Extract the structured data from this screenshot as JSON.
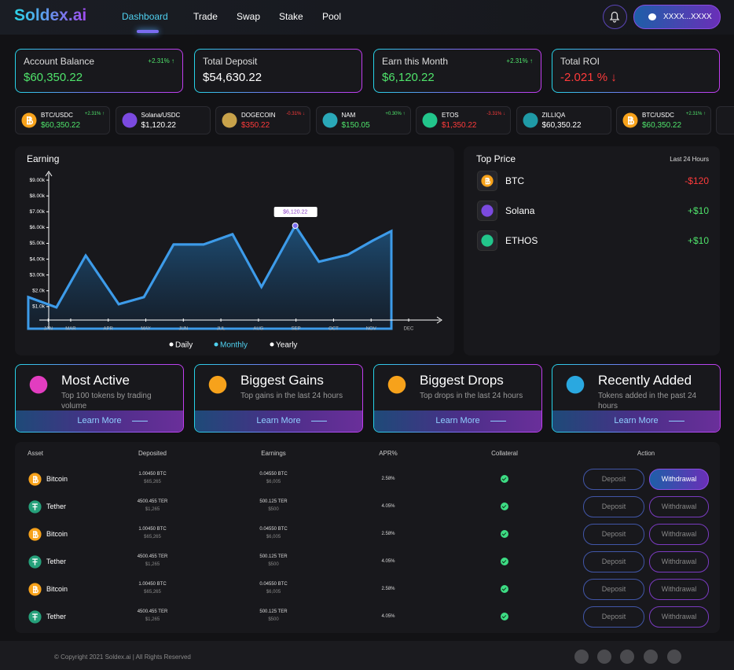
{
  "header": {
    "logo": "Soldex.ai",
    "nav": [
      "Dashboard",
      "Trade",
      "Swap",
      "Stake",
      "Pool"
    ],
    "wallet": "XXXX...XXXX"
  },
  "stats": [
    {
      "label": "Account Balance",
      "value": "$60,350.22",
      "change": "+2.31% ↑",
      "color": "#4fe36b"
    },
    {
      "label": "Total Deposit",
      "value": "$54,630.22",
      "color": "#ffffff"
    },
    {
      "label": "Earn this Month",
      "value": "$6,120.22",
      "change": "+2.31% ↑",
      "color": "#4fe36b"
    },
    {
      "label": "Total ROI",
      "value": "-2.021 % ↓",
      "color": "#ff3b3b"
    }
  ],
  "tickers": [
    {
      "pair": "BTC/USDC",
      "change": "+2.31% ↑",
      "price": "$60,350.22",
      "color": "#4fe36b"
    },
    {
      "pair": "Solana/USDC",
      "price": "$1,120.22",
      "color": "#ffffff"
    },
    {
      "pair": "DOGECOIN",
      "change": "-0.31% ↓",
      "price": "$350.22",
      "color": "#ff3b3b"
    },
    {
      "pair": "NAM",
      "change": "+0.30% ↑",
      "price": "$150.05",
      "color": "#4fe36b"
    },
    {
      "pair": "ETOS",
      "change": "-3.31% ↓",
      "price": "$1,350.22",
      "color": "#ff3b3b"
    },
    {
      "pair": "ZILLIQA",
      "price": "$60,350.22",
      "color": "#ffffff"
    },
    {
      "pair": "BTC/USDC",
      "change": "+2.31% ↑",
      "price": "$60,350.22",
      "color": "#4fe36b"
    }
  ],
  "chart_data": {
    "type": "line",
    "title": "Earning",
    "x": [
      0.87,
      1.62,
      2.4,
      3.28,
      3.95,
      4.74,
      5.54,
      6.31,
      7.08,
      7.98,
      8.61,
      9.38,
      10.05,
      10.54
    ],
    "values": [
      1.6,
      0.95,
      4.23,
      1.15,
      1.6,
      4.93,
      4.93,
      5.58,
      2.24,
      6.12,
      3.84,
      4.28,
      5.18,
      5.78
    ],
    "color": "#3d9be9",
    "xlim": [
      0.85,
      11.9
    ],
    "xticks": [
      {
        "value": 1.4,
        "label": "JAN"
      },
      {
        "value": 2,
        "label": "MAR"
      },
      {
        "value": 3,
        "label": "APR"
      },
      {
        "value": 4,
        "label": "MAY"
      },
      {
        "value": 5,
        "label": "JUN"
      },
      {
        "value": 6,
        "label": "JUL"
      },
      {
        "value": 7,
        "label": "AUG"
      },
      {
        "value": 8,
        "label": "SEP"
      },
      {
        "value": 9,
        "label": "OCT"
      },
      {
        "value": 10,
        "label": "NOV"
      },
      {
        "value": 11,
        "label": "DEC"
      }
    ],
    "ylim": [
      -0.4,
      9.6
    ],
    "yticks": [
      {
        "value": 1,
        "label": "$1.0k"
      },
      {
        "value": 2,
        "label": "$2.0k"
      },
      {
        "value": 3,
        "label": "$3.00k"
      },
      {
        "value": 4,
        "label": "$4.00k"
      },
      {
        "value": 5,
        "label": "$5.00k"
      },
      {
        "value": 6,
        "label": "$6.00k"
      },
      {
        "value": 7,
        "label": "$7.00k"
      },
      {
        "value": 8,
        "label": "$8.00k"
      },
      {
        "value": 9,
        "label": "$9.00k"
      }
    ],
    "annotation": "$6,120.22",
    "legend": [
      "Daily",
      "Monthly",
      "Yearly"
    ]
  },
  "top_price": {
    "title": "Top Price",
    "period": "Last 24 Hours",
    "items": [
      {
        "name": "BTC",
        "change": "-$120",
        "color": "#ff3b3b"
      },
      {
        "name": "Solana",
        "change": "+$10",
        "color": "#4fe36b"
      },
      {
        "name": "ETHOS",
        "change": "+$10",
        "color": "#4fe36b"
      }
    ]
  },
  "cards": [
    {
      "title": "Most Active",
      "desc": "Top 100 tokens by trading volume",
      "link": "Learn More"
    },
    {
      "title": "Biggest Gains",
      "desc": "Top gains in the last 24 hours",
      "link": "Learn More"
    },
    {
      "title": "Biggest Drops",
      "desc": "Top drops in the last 24 hours",
      "link": "Learn More"
    },
    {
      "title": "Recently Added",
      "desc": "Tokens added in the past 24 hours",
      "link": "Learn More"
    }
  ],
  "table": {
    "headers": [
      "Asset",
      "Deposited",
      "Earnings",
      "APR%",
      "Collateral",
      "Action"
    ],
    "rows": [
      {
        "asset": "Bitcoin",
        "deposited": "1.00450 BTC",
        "deposited_usd": "$65,265",
        "earnings": "0.04550 BTC",
        "earnings_usd": "$6,005",
        "apr": "2.58%"
      },
      {
        "asset": "Tether",
        "deposited": "4500.455 TER",
        "deposited_usd": "$1,265",
        "earnings": "500.125 TER",
        "earnings_usd": "$500",
        "apr": "4.05%"
      },
      {
        "asset": "Bitcoin",
        "deposited": "1.00450 BTC",
        "deposited_usd": "$65,265",
        "earnings": "0.04550 BTC",
        "earnings_usd": "$6,005",
        "apr": "2.58%"
      },
      {
        "asset": "Tether",
        "deposited": "4500.455 TER",
        "deposited_usd": "$1,265",
        "earnings": "500.125 TER",
        "earnings_usd": "$500",
        "apr": "4.05%"
      },
      {
        "asset": "Bitcoin",
        "deposited": "1.00450 BTC",
        "deposited_usd": "$65,265",
        "earnings": "0.04550 BTC",
        "earnings_usd": "$6,005",
        "apr": "2.58%"
      },
      {
        "asset": "Tether",
        "deposited": "4500.455 TER",
        "deposited_usd": "$1,265",
        "earnings": "500.125 TER",
        "earnings_usd": "$500",
        "apr": "4.05%"
      }
    ],
    "deposit": "Deposit",
    "withdrawal": "Withdrawal"
  },
  "footer": {
    "copyright": "© Copyright 2021 Soldex.ai | All Rights Reserved"
  }
}
